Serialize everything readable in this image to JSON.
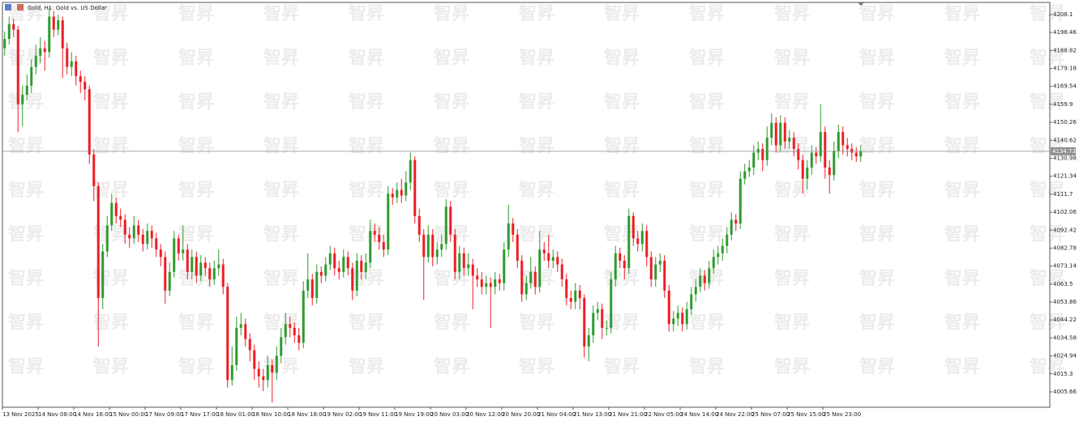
{
  "chart_data": {
    "type": "candlestick",
    "title": "Gold, H1:  Gold vs. US Dollar",
    "watermark": "智昇",
    "up_color": "#2e9b2e",
    "down_color": "#ee1c25",
    "price_line": 4134.73,
    "ylim": [
      3997.4,
      4214.6
    ],
    "yticks": [
      4005.66,
      4015.3,
      4024.94,
      4034.58,
      4044.22,
      4053.86,
      4063.5,
      4073.14,
      4082.78,
      4092.42,
      4102.06,
      4111.7,
      4121.34,
      4130.98,
      4140.62,
      4150.26,
      4159.9,
      4169.54,
      4179.18,
      4188.82,
      4198.46,
      4208.1
    ],
    "categories": [
      "13 Nov 2025",
      null,
      null,
      null,
      null,
      null,
      null,
      null,
      "14 Nov 08:00",
      null,
      null,
      null,
      null,
      null,
      null,
      null,
      "14 Nov 16:00",
      null,
      null,
      null,
      null,
      null,
      null,
      null,
      "15 Nov 00:00",
      null,
      null,
      null,
      null,
      null,
      null,
      null,
      "17 Nov 09:00",
      null,
      null,
      null,
      null,
      null,
      null,
      null,
      "17 Nov 17:00",
      null,
      null,
      null,
      null,
      null,
      null,
      null,
      "18 Nov 01:00",
      null,
      null,
      null,
      null,
      null,
      null,
      null,
      "18 Nov 10:00",
      null,
      null,
      null,
      null,
      null,
      null,
      null,
      "18 Nov 18:00",
      null,
      null,
      null,
      null,
      null,
      null,
      null,
      "19 Nov 02:00",
      null,
      null,
      null,
      null,
      null,
      null,
      null,
      "19 Nov 11:00",
      null,
      null,
      null,
      null,
      null,
      null,
      null,
      "19 Nov 19:00",
      null,
      null,
      null,
      null,
      null,
      null,
      null,
      "20 Nov 03:00",
      null,
      null,
      null,
      null,
      null,
      null,
      null,
      "20 Nov 12:00",
      null,
      null,
      null,
      null,
      null,
      null,
      null,
      "20 Nov 20:00",
      null,
      null,
      null,
      null,
      null,
      null,
      null,
      "21 Nov 04:00",
      null,
      null,
      null,
      null,
      null,
      null,
      null,
      "21 Nov 13:00",
      null,
      null,
      null,
      null,
      null,
      null,
      null,
      "21 Nov 21:00",
      null,
      null,
      null,
      null,
      null,
      null,
      null,
      "22 Nov 05:00",
      null,
      null,
      null,
      null,
      null,
      null,
      null,
      "24 Nov 14:00",
      null,
      null,
      null,
      null,
      null,
      null,
      null,
      "24 Nov 22:00",
      null,
      null,
      null,
      null,
      null,
      null,
      null,
      "25 Nov 07:00",
      null,
      null,
      null,
      null,
      null,
      null,
      null,
      "25 Nov 15:00",
      null,
      null,
      null,
      null,
      null,
      null,
      null,
      "25 Nov 23:00",
      null,
      null,
      null,
      null,
      null,
      null,
      null,
      null
    ],
    "open": [
      4190,
      4195,
      4203,
      4200,
      4160,
      4165,
      4170,
      4180,
      4186,
      4190,
      4188,
      4207,
      4200,
      4205,
      4190,
      4180,
      4183,
      4175,
      4172,
      4168,
      4133,
      4116,
      4056,
      4081,
      4095,
      4107,
      4100,
      4098,
      4090,
      4088,
      4095,
      4090,
      4085,
      4092,
      4088,
      4082,
      4078,
      4060,
      4070,
      4088,
      4080,
      4082,
      4070,
      4078,
      4068,
      4075,
      4072,
      4066,
      4072,
      4074,
      4062,
      4012,
      4020,
      4040,
      4042,
      4034,
      4028,
      4018,
      4014,
      4012,
      4020,
      4016,
      4025,
      4035,
      4042,
      4040,
      4036,
      4032,
      4060,
      4066,
      4056,
      4070,
      4068,
      4074,
      4080,
      4072,
      4070,
      4078,
      4072,
      4060,
      4076,
      4070,
      4075,
      4092,
      4090,
      4086,
      4082,
      4112,
      4110,
      4114,
      4111,
      4118,
      4130,
      4100,
      4090,
      4078,
      4090,
      4078,
      4082,
      4085,
      4105,
      4090,
      4070,
      4080,
      4072,
      4074,
      4068,
      4066,
      4062,
      4064,
      4062,
      4066,
      4064,
      4082,
      4096,
      4090,
      4076,
      4058,
      4064,
      4070,
      4062,
      4082,
      4080,
      4076,
      4078,
      4074,
      4066,
      4056,
      4054,
      4060,
      4056,
      4030,
      4036,
      4048,
      4050,
      4040,
      4040,
      4066,
      4080,
      4076,
      4072,
      4100,
      4088,
      4085,
      4092,
      4078,
      4066,
      4074,
      4076,
      4060,
      4042,
      4045,
      4048,
      4042,
      4050,
      4058,
      4062,
      4068,
      4064,
      4072,
      4078,
      4080,
      4084,
      4090,
      4098,
      4096,
      4120,
      4124,
      4126,
      4134,
      4136,
      4130,
      4142,
      4150,
      4138,
      4150,
      4140,
      4142,
      4136,
      4130,
      4120,
      4126,
      4134,
      4132,
      4145,
      4126,
      4122,
      4135,
      4145,
      4138,
      4136,
      4134,
      4132
    ],
    "high": [
      4199,
      4207,
      4206,
      4202,
      4170,
      4176,
      4184,
      4192,
      4196,
      4194,
      4212,
      4210,
      4208,
      4207,
      4193,
      4188,
      4186,
      4178,
      4175,
      4170,
      4136,
      4118,
      4085,
      4100,
      4112,
      4110,
      4104,
      4101,
      4094,
      4100,
      4098,
      4093,
      4096,
      4095,
      4091,
      4085,
      4081,
      4075,
      4092,
      4090,
      4095,
      4085,
      4082,
      4081,
      4079,
      4078,
      4075,
      4076,
      4082,
      4077,
      4064,
      4030,
      4046,
      4048,
      4045,
      4037,
      4031,
      4022,
      4018,
      4025,
      4023,
      4030,
      4040,
      4048,
      4046,
      4043,
      4040,
      4065,
      4080,
      4069,
      4074,
      4073,
      4078,
      4084,
      4083,
      4076,
      4082,
      4081,
      4075,
      4080,
      4079,
      4080,
      4098,
      4096,
      4094,
      4090,
      4116,
      4115,
      4118,
      4120,
      4124,
      4134,
      4132,
      4104,
      4093,
      4095,
      4093,
      4086,
      4090,
      4109,
      4108,
      4093,
      4084,
      4083,
      4080,
      4077,
      4072,
      4070,
      4068,
      4067,
      4070,
      4069,
      4086,
      4106,
      4099,
      4093,
      4079,
      4068,
      4078,
      4073,
      4092,
      4086,
      4090,
      4082,
      4081,
      4077,
      4069,
      4060,
      4064,
      4063,
      4058,
      4040,
      4052,
      4054,
      4053,
      4044,
      4070,
      4084,
      4083,
      4079,
      4104,
      4102,
      4092,
      4096,
      4095,
      4081,
      4078,
      4080,
      4079,
      4063,
      4049,
      4052,
      4051,
      4054,
      4062,
      4066,
      4072,
      4071,
      4076,
      4082,
      4084,
      4088,
      4094,
      4102,
      4101,
      4124,
      4128,
      4130,
      4138,
      4140,
      4139,
      4148,
      4155,
      4153,
      4154,
      4153,
      4146,
      4145,
      4139,
      4133,
      4130,
      4138,
      4137,
      4160,
      4148,
      4130,
      4140,
      4149,
      4148,
      4142,
      4139,
      4137,
      4138
    ],
    "low": [
      4186,
      4192,
      4196,
      4145,
      4148,
      4162,
      4166,
      4176,
      4182,
      4178,
      4185,
      4196,
      4197,
      4174,
      4176,
      4175,
      4170,
      4166,
      4162,
      4128,
      4108,
      4030,
      4050,
      4078,
      4092,
      4096,
      4094,
      4085,
      4083,
      4085,
      4086,
      4081,
      4082,
      4083,
      4078,
      4073,
      4053,
      4057,
      4067,
      4076,
      4076,
      4066,
      4066,
      4064,
      4065,
      4068,
      4062,
      4063,
      4068,
      4058,
      4008,
      4009,
      4017,
      4036,
      4030,
      4022,
      4012,
      4008,
      4006,
      4008,
      4000,
      4012,
      4021,
      4031,
      4035,
      4032,
      4028,
      4029,
      4056,
      4052,
      4053,
      4064,
      4065,
      4071,
      4068,
      4066,
      4067,
      4068,
      4055,
      4057,
      4066,
      4066,
      4072,
      4086,
      4082,
      4078,
      4079,
      4106,
      4107,
      4107,
      4108,
      4114,
      4096,
      4086,
      4055,
      4075,
      4073,
      4074,
      4078,
      4082,
      4086,
      4066,
      4066,
      4068,
      4068,
      4050,
      4062,
      4058,
      4058,
      4040,
      4058,
      4060,
      4060,
      4078,
      4086,
      4072,
      4054,
      4055,
      4061,
      4058,
      4059,
      4076,
      4072,
      4072,
      4070,
      4062,
      4052,
      4050,
      4050,
      4050,
      4024,
      4022,
      4032,
      4044,
      4034,
      4036,
      4037,
      4062,
      4072,
      4066,
      4069,
      4084,
      4081,
      4081,
      4073,
      4062,
      4062,
      4070,
      4056,
      4038,
      4038,
      4041,
      4038,
      4039,
      4047,
      4054,
      4059,
      4060,
      4061,
      4069,
      4074,
      4076,
      4080,
      4087,
      4092,
      4093,
      4117,
      4121,
      4122,
      4130,
      4124,
      4127,
      4138,
      4134,
      4135,
      4136,
      4136,
      4132,
      4125,
      4112,
      4114,
      4122,
      4128,
      4129,
      4120,
      4112,
      4119,
      4131,
      4133,
      4132,
      4130,
      4129,
      4129
    ],
    "close": [
      4195,
      4203,
      4200,
      4160,
      4165,
      4170,
      4180,
      4186,
      4190,
      4188,
      4207,
      4200,
      4205,
      4190,
      4180,
      4183,
      4175,
      4172,
      4168,
      4133,
      4116,
      4056,
      4081,
      4095,
      4107,
      4100,
      4098,
      4090,
      4088,
      4095,
      4090,
      4085,
      4092,
      4088,
      4082,
      4078,
      4060,
      4070,
      4088,
      4080,
      4082,
      4070,
      4078,
      4068,
      4075,
      4072,
      4066,
      4072,
      4074,
      4062,
      4012,
      4020,
      4040,
      4042,
      4034,
      4028,
      4018,
      4014,
      4012,
      4020,
      4016,
      4025,
      4035,
      4042,
      4040,
      4036,
      4032,
      4060,
      4066,
      4056,
      4070,
      4068,
      4074,
      4080,
      4072,
      4070,
      4078,
      4072,
      4060,
      4076,
      4070,
      4075,
      4092,
      4090,
      4086,
      4082,
      4112,
      4110,
      4114,
      4111,
      4118,
      4130,
      4100,
      4090,
      4078,
      4090,
      4078,
      4082,
      4085,
      4105,
      4090,
      4070,
      4080,
      4072,
      4074,
      4068,
      4066,
      4062,
      4064,
      4062,
      4066,
      4064,
      4082,
      4096,
      4090,
      4076,
      4058,
      4064,
      4070,
      4062,
      4082,
      4080,
      4076,
      4078,
      4074,
      4066,
      4056,
      4054,
      4060,
      4056,
      4030,
      4036,
      4048,
      4050,
      4040,
      4040,
      4066,
      4080,
      4076,
      4072,
      4100,
      4088,
      4085,
      4092,
      4078,
      4066,
      4074,
      4076,
      4060,
      4042,
      4045,
      4048,
      4042,
      4050,
      4058,
      4062,
      4068,
      4064,
      4072,
      4078,
      4080,
      4084,
      4090,
      4098,
      4096,
      4120,
      4124,
      4126,
      4134,
      4136,
      4130,
      4142,
      4150,
      4138,
      4150,
      4140,
      4142,
      4136,
      4130,
      4120,
      4126,
      4134,
      4132,
      4145,
      4126,
      4122,
      4135,
      4145,
      4138,
      4136,
      4134,
      4132,
      4134.73
    ]
  }
}
